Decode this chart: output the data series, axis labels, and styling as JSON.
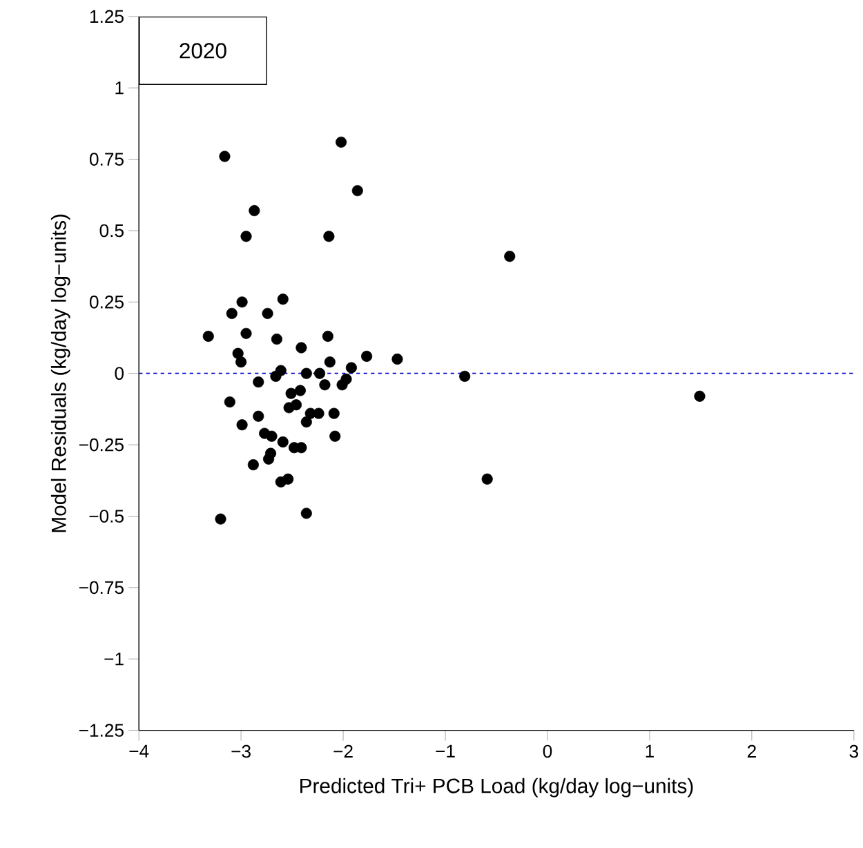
{
  "chart_data": {
    "type": "scatter",
    "title": "2020",
    "xlabel": "Predicted Tri+ PCB Load (kg/day log−units)",
    "ylabel": "Model Residuals (kg/day log−units)",
    "xlim": [
      -4,
      3
    ],
    "ylim": [
      -1.25,
      1.25
    ],
    "xticks": [
      {
        "value": -4,
        "label": "−4"
      },
      {
        "value": -3,
        "label": "−3"
      },
      {
        "value": -2,
        "label": "−2"
      },
      {
        "value": -1,
        "label": "−1"
      },
      0,
      1,
      2,
      3
    ],
    "yticks": [
      {
        "value": -1.25,
        "label": "−1.25"
      },
      {
        "value": -1,
        "label": "−1"
      },
      {
        "value": -0.75,
        "label": "−0.75"
      },
      {
        "value": -0.5,
        "label": "−0.5"
      },
      {
        "value": -0.25,
        "label": "−0.25"
      },
      0,
      0.25,
      0.5,
      0.75,
      1,
      1.25
    ],
    "grid": false,
    "ref_lines": [
      {
        "axis": "y",
        "value": 0,
        "color": "#0000cc",
        "line_style": "dashed"
      }
    ],
    "series": [
      {
        "color": "#000000",
        "x": [
          -3.16,
          -2.02,
          -1.86,
          -2.87,
          -2.95,
          -2.14,
          -2.59,
          -2.99,
          -3.09,
          -2.74,
          -3.32,
          -2.95,
          -2.65,
          -2.41,
          -2.15,
          -3.03,
          -3.0,
          -2.13,
          -1.77,
          -1.47,
          -1.92,
          -2.61,
          -2.66,
          -2.36,
          -2.23,
          -2.18,
          -1.97,
          -2.01,
          -2.83,
          -2.42,
          -2.51,
          -3.11,
          -2.46,
          -2.53,
          -2.32,
          -2.24,
          -2.09,
          -2.83,
          -2.36,
          -2.99,
          -2.77,
          -2.7,
          -2.08,
          -2.59,
          -2.48,
          -2.41,
          -2.71,
          -2.73,
          -2.88,
          -2.54,
          -2.61,
          -3.2,
          -2.36,
          -0.37,
          -0.81,
          -0.59,
          1.49
        ],
        "values": [
          0.76,
          0.81,
          0.64,
          0.57,
          0.48,
          0.48,
          0.26,
          0.25,
          0.21,
          0.21,
          0.13,
          0.14,
          0.12,
          0.09,
          0.13,
          0.07,
          0.04,
          0.04,
          0.06,
          0.05,
          0.02,
          0.01,
          -0.01,
          0.0,
          0.0,
          -0.04,
          -0.02,
          -0.04,
          -0.03,
          -0.06,
          -0.07,
          -0.1,
          -0.11,
          -0.12,
          -0.14,
          -0.14,
          -0.14,
          -0.15,
          -0.17,
          -0.18,
          -0.21,
          -0.22,
          -0.22,
          -0.24,
          -0.26,
          -0.26,
          -0.28,
          -0.3,
          -0.32,
          -0.37,
          -0.38,
          -0.51,
          -0.49,
          0.41,
          -0.01,
          -0.37,
          -0.08
        ]
      }
    ]
  }
}
